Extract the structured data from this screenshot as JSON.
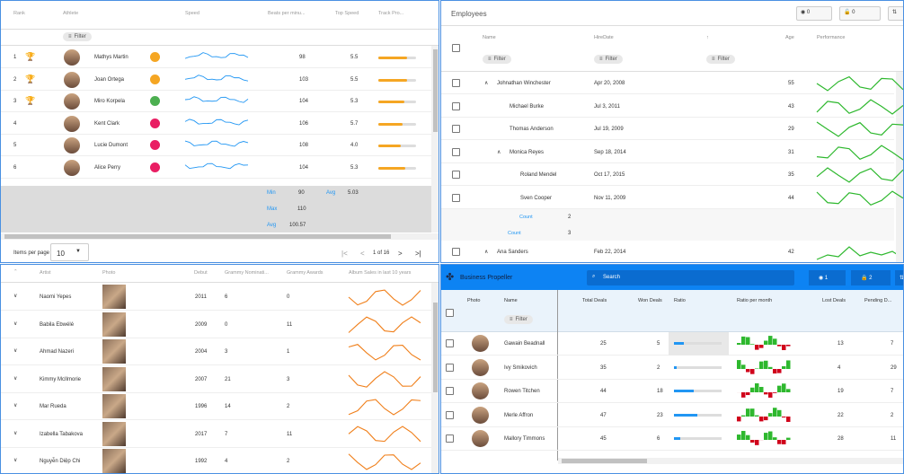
{
  "athletes": {
    "columns": [
      "Rank",
      "Athlete",
      "Speed",
      "Beats per minu...",
      "Top Speed",
      "Track Pro..."
    ],
    "filter_label": "Filter",
    "rows": [
      {
        "rank": "1",
        "name": "Mathys Martin",
        "beats": "98",
        "top": "5.5",
        "trophy": "gold",
        "badge": "#f5a623",
        "track": 0.75
      },
      {
        "rank": "2",
        "name": "Joan Ortega",
        "beats": "103",
        "top": "5.5",
        "trophy": "silver",
        "badge": "#f5a623",
        "track": 0.75
      },
      {
        "rank": "3",
        "name": "Miro Korpela",
        "beats": "104",
        "top": "5.3",
        "trophy": "bronze",
        "badge": "#4caf50",
        "track": 0.7
      },
      {
        "rank": "4",
        "name": "Kent Clark",
        "beats": "106",
        "top": "5.7",
        "trophy": "",
        "badge": "#e91e63",
        "track": 0.65
      },
      {
        "rank": "5",
        "name": "Lucie Dumont",
        "beats": "108",
        "top": "4.0",
        "trophy": "",
        "badge": "#e91e63",
        "track": 0.6
      },
      {
        "rank": "6",
        "name": "Alice Perry",
        "beats": "104",
        "top": "5.3",
        "trophy": "",
        "badge": "#e91e63",
        "track": 0.72
      }
    ],
    "summary": {
      "min_label": "Min",
      "min": "90",
      "avg_label": "Avg",
      "avg_top": "5.03",
      "max_label": "Max",
      "max": "110",
      "avg2_label": "Avg",
      "avg2": "100.57"
    },
    "pager": {
      "items_per_page": "Items per page",
      "size": "10",
      "page": "1 of 16"
    }
  },
  "employees": {
    "title": "Employees",
    "toolbar": {
      "hidden_count": "0",
      "pinned_count": "0"
    },
    "columns": [
      "Name",
      "HireDate",
      "Age",
      "Performance"
    ],
    "filter_label": "Filter",
    "rows": [
      {
        "name": "Johnathan Winchester",
        "date": "Apr 20, 2008",
        "age": "55",
        "level": 0,
        "expand": true
      },
      {
        "name": "Michael Burke",
        "date": "Jul 3, 2011",
        "age": "43",
        "level": 1,
        "expand": false
      },
      {
        "name": "Thomas Anderson",
        "date": "Jul 19, 2009",
        "age": "29",
        "level": 1,
        "expand": false
      },
      {
        "name": "Monica Reyes",
        "date": "Sep 18, 2014",
        "age": "31",
        "level": 1,
        "expand": true
      },
      {
        "name": "Roland Mendel",
        "date": "Oct 17, 2015",
        "age": "35",
        "level": 2,
        "expand": false
      },
      {
        "name": "Sven Cooper",
        "date": "Nov 11, 2009",
        "age": "44",
        "level": 2,
        "expand": false
      }
    ],
    "count1_label": "Count",
    "count1": "2",
    "count2_label": "Count",
    "count2": "3",
    "last_row": {
      "name": "Ana Sanders",
      "date": "Feb 22, 2014",
      "age": "42"
    }
  },
  "artists": {
    "columns": [
      "Artist",
      "Photo",
      "Debut",
      "Grammy Nominati...",
      "Grammy Awards",
      "Album Sales in last 10 years"
    ],
    "rows": [
      {
        "name": "Naomi Yepes",
        "debut": "2011",
        "nom": "6",
        "awards": "0"
      },
      {
        "name": "Babila Ebwélé",
        "debut": "2009",
        "nom": "0",
        "awards": "11"
      },
      {
        "name": "Ahmad Nazeri",
        "debut": "2004",
        "nom": "3",
        "awards": "1"
      },
      {
        "name": "Kimmy McIlmorie",
        "debut": "2007",
        "nom": "21",
        "awards": "3"
      },
      {
        "name": "Mar Rueda",
        "debut": "1996",
        "nom": "14",
        "awards": "2"
      },
      {
        "name": "Izabella Tabakova",
        "debut": "2017",
        "nom": "7",
        "awards": "11"
      },
      {
        "name": "Nguyễn Diệp Chi",
        "debut": "1992",
        "nom": "4",
        "awards": "2"
      }
    ]
  },
  "business": {
    "title": "Business Propeller",
    "search_placeholder": "Search",
    "hidden": "1",
    "pinned": "2",
    "columns": [
      "Photo",
      "Name",
      "Total Deals",
      "Won Deals",
      "Ratio",
      "Ratio per month",
      "Lost Deals",
      "Pending D..."
    ],
    "filter_label": "Filter",
    "rows": [
      {
        "name": "Gawain Beadnall",
        "total": "25",
        "won": "5",
        "ratio": 0.2,
        "lost": "13",
        "pending": "7"
      },
      {
        "name": "Ivy Smikovich",
        "total": "35",
        "won": "2",
        "ratio": 0.06,
        "lost": "4",
        "pending": "29"
      },
      {
        "name": "Rowen Titchen",
        "total": "44",
        "won": "18",
        "ratio": 0.41,
        "lost": "19",
        "pending": "7"
      },
      {
        "name": "Merle Affron",
        "total": "47",
        "won": "23",
        "ratio": 0.49,
        "lost": "22",
        "pending": "2"
      },
      {
        "name": "Mallory Timmons",
        "total": "45",
        "won": "6",
        "ratio": 0.13,
        "lost": "28",
        "pending": "11"
      }
    ]
  }
}
